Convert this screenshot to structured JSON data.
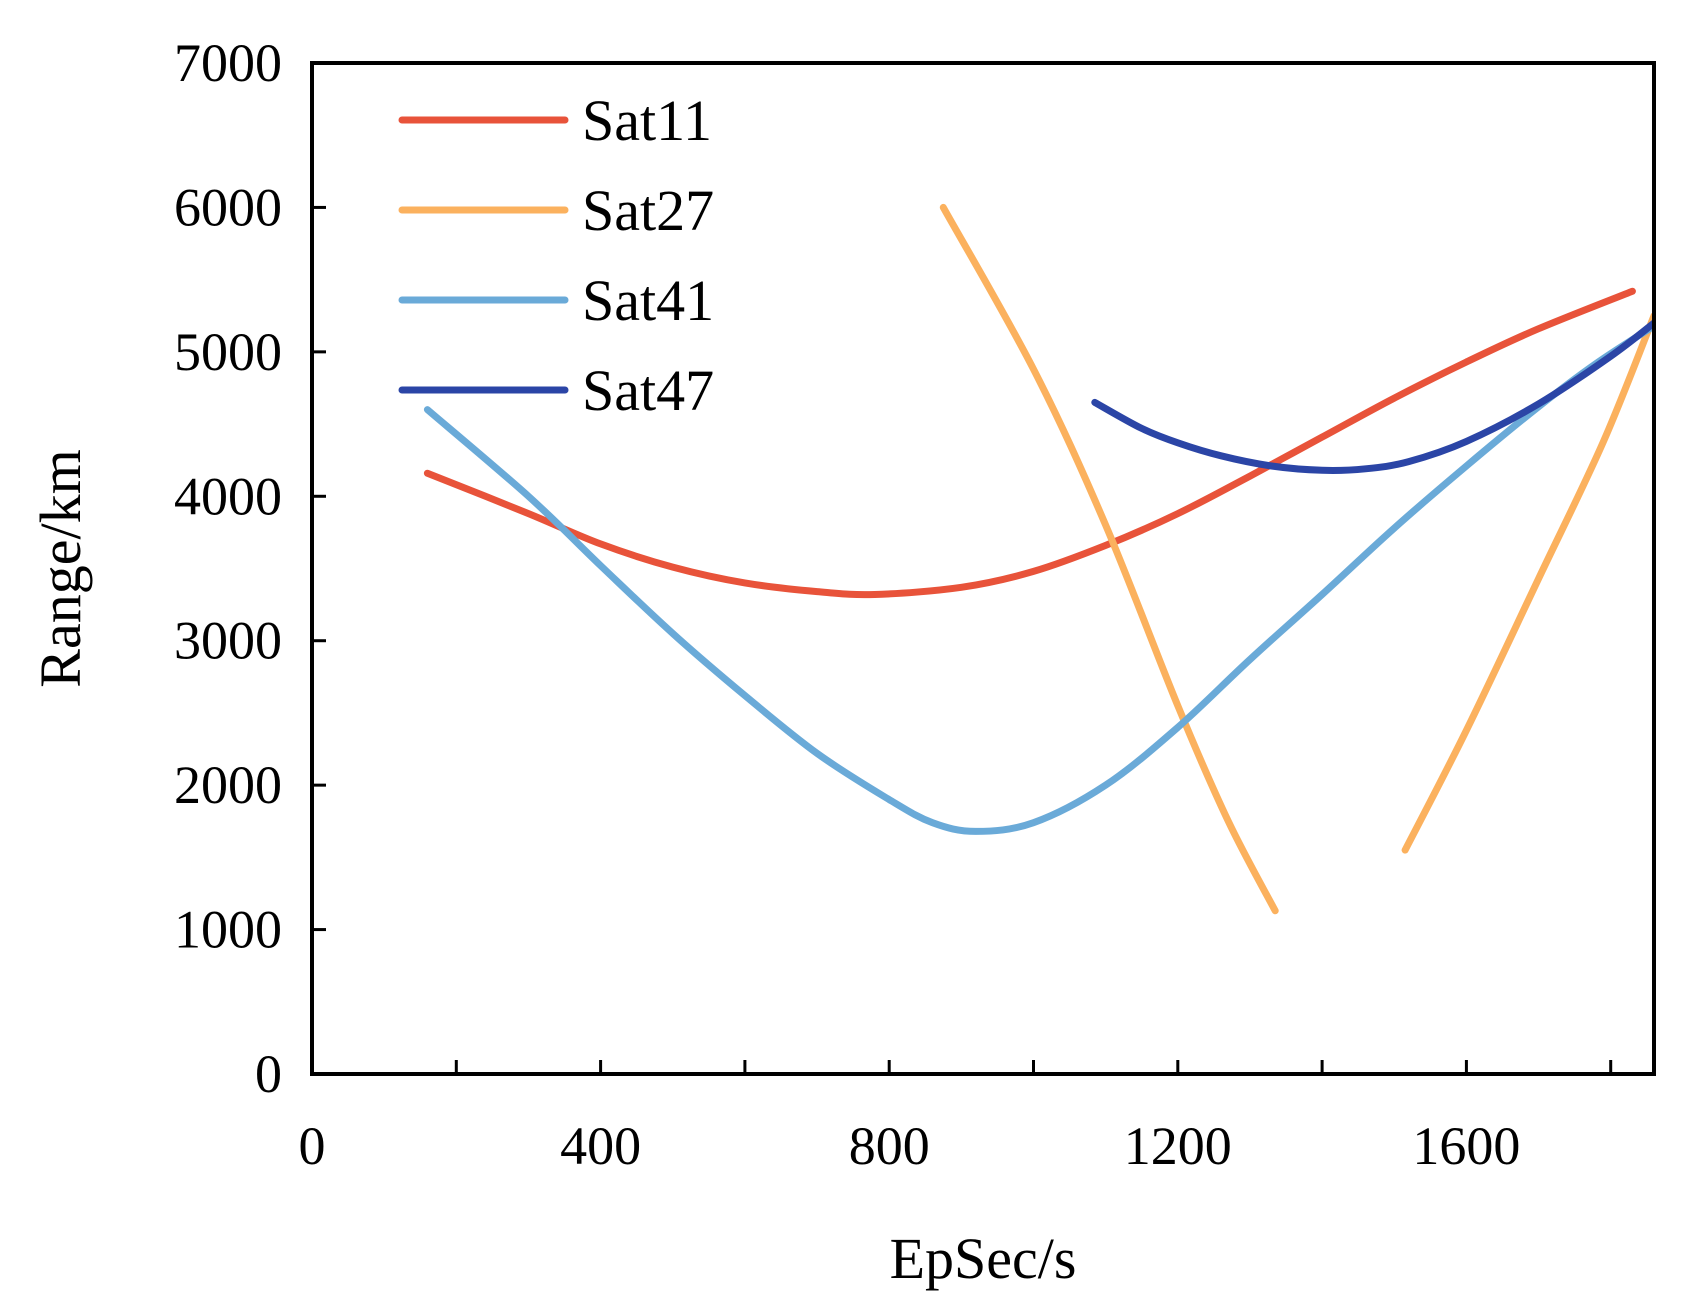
{
  "chart_data": {
    "type": "line",
    "title": "",
    "xlabel": "EpSec/s",
    "ylabel": "Range/km",
    "xlim": [
      0,
      1860
    ],
    "ylim": [
      0,
      7000
    ],
    "xticks": [
      0,
      400,
      800,
      1200,
      1600
    ],
    "xticks_minor": [
      200,
      600,
      1000,
      1400,
      1800
    ],
    "yticks": [
      0,
      1000,
      2000,
      3000,
      4000,
      5000,
      6000,
      7000
    ],
    "grid": false,
    "legend_position": "top-left",
    "series": [
      {
        "name": "Sat11",
        "color": "#e8533a",
        "x": [
          160,
          300,
          400,
          500,
          600,
          700,
          780,
          900,
          1000,
          1100,
          1200,
          1300,
          1400,
          1500,
          1600,
          1700,
          1830
        ],
        "y": [
          4160,
          3880,
          3670,
          3510,
          3400,
          3340,
          3320,
          3370,
          3480,
          3660,
          3880,
          4140,
          4410,
          4680,
          4930,
          5160,
          5420
        ]
      },
      {
        "name": "Sat27",
        "segments": [
          {
            "x": [
              875,
              1000,
              1100,
              1200,
              1270,
              1335
            ],
            "y": [
              6000,
              4880,
              3800,
              2550,
              1750,
              1130
            ]
          },
          {
            "x": [
              1515,
              1600,
              1700,
              1790,
              1860
            ],
            "y": [
              1550,
              2380,
              3430,
              4380,
              5250
            ]
          }
        ],
        "color": "#fbb15e"
      },
      {
        "name": "Sat41",
        "color": "#6aaad8",
        "x": [
          160,
          300,
          400,
          500,
          600,
          700,
          800,
          860,
          920,
          1000,
          1100,
          1200,
          1300,
          1400,
          1500,
          1600,
          1700,
          1780,
          1860
        ],
        "y": [
          4600,
          4000,
          3520,
          3050,
          2620,
          2220,
          1900,
          1740,
          1680,
          1740,
          2000,
          2400,
          2870,
          3320,
          3780,
          4210,
          4620,
          4920,
          5180
        ]
      },
      {
        "name": "Sat47",
        "color": "#2b45a6",
        "x": [
          1085,
          1150,
          1200,
          1260,
          1330,
          1400,
          1460,
          1520,
          1600,
          1700,
          1800,
          1860
        ],
        "y": [
          4650,
          4470,
          4370,
          4280,
          4210,
          4180,
          4190,
          4240,
          4380,
          4640,
          4970,
          5200
        ]
      }
    ]
  }
}
